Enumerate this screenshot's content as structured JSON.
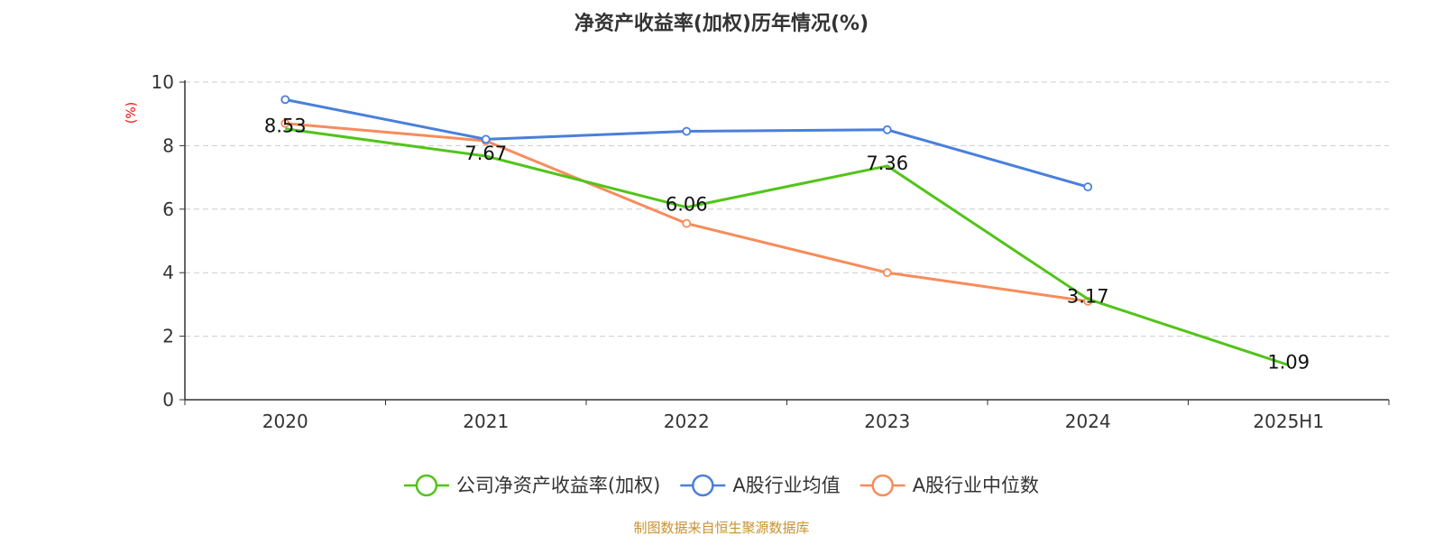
{
  "chart_data": {
    "type": "line",
    "title": "净资产收益率(加权)历年情况(%)",
    "ylabel": "(%)",
    "xlabel": "",
    "categories": [
      "2020",
      "2021",
      "2022",
      "2023",
      "2024",
      "2025H1"
    ],
    "ylim": [
      0,
      10
    ],
    "yticks": [
      0,
      2,
      4,
      6,
      8,
      10
    ],
    "grid": true,
    "legend_position": "bottom-center",
    "series": [
      {
        "name": "公司净资产收益率(加权)",
        "color": "#52c41a",
        "show_labels": true,
        "values": [
          8.53,
          7.67,
          6.06,
          7.36,
          3.17,
          1.09
        ],
        "labels": [
          "8.53",
          "7.67",
          "6.06",
          "7.36",
          "3.17",
          "1.09"
        ]
      },
      {
        "name": "A股行业均值",
        "color": "#4a7fdc",
        "show_labels": false,
        "values": [
          9.45,
          8.2,
          8.45,
          8.5,
          6.7,
          null
        ]
      },
      {
        "name": "A股行业中位数",
        "color": "#f78c5b",
        "show_labels": false,
        "values": [
          8.7,
          8.15,
          5.55,
          4.0,
          3.1,
          null
        ]
      }
    ],
    "source": "制图数据来自恒生聚源数据库",
    "source_color": "#c8922f",
    "ylabel_color": "#ff0000"
  }
}
